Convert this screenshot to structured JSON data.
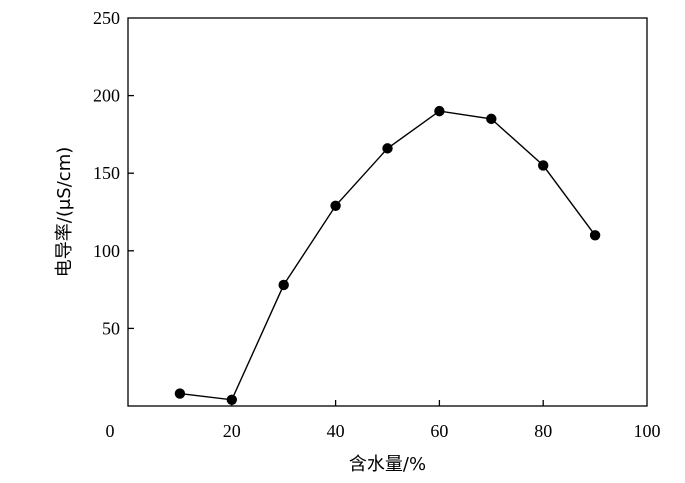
{
  "chart_data": {
    "type": "line",
    "title": "",
    "xlabel": "含水量/%",
    "ylabel": "电导率/(μS/cm)",
    "xlim": [
      0,
      100
    ],
    "ylim": [
      0,
      250
    ],
    "x_ticks": [
      0,
      20,
      40,
      60,
      80,
      100
    ],
    "y_ticks": [
      50,
      100,
      150,
      200,
      250
    ],
    "grid": false,
    "legend": "none",
    "marker": "filled-circle",
    "color": "#000000",
    "series": [
      {
        "x": [
          10,
          20,
          30,
          40,
          50,
          60,
          70,
          80,
          90
        ],
        "values": [
          8,
          4,
          78,
          129,
          166,
          190,
          185,
          155,
          110
        ]
      }
    ]
  }
}
